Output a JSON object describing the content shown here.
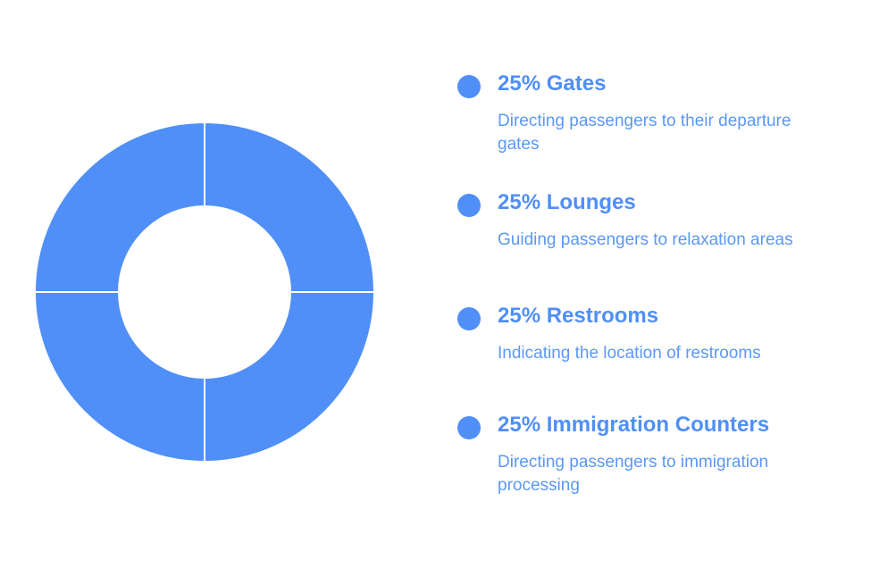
{
  "chart_data": {
    "type": "donut",
    "categories": [
      "Gates",
      "Lounges",
      "Restrooms",
      "Immigration Counters"
    ],
    "values": [
      25,
      25,
      25,
      25
    ],
    "value_labels": [
      "25%",
      "25%",
      "25%",
      "25%"
    ],
    "descriptions": [
      "Directing passengers to their departure gates",
      "Guiding passengers to relaxation areas",
      "Indicating the location of restrooms",
      "Directing passengers to immigration processing"
    ],
    "color": "#4f8ff7"
  }
}
